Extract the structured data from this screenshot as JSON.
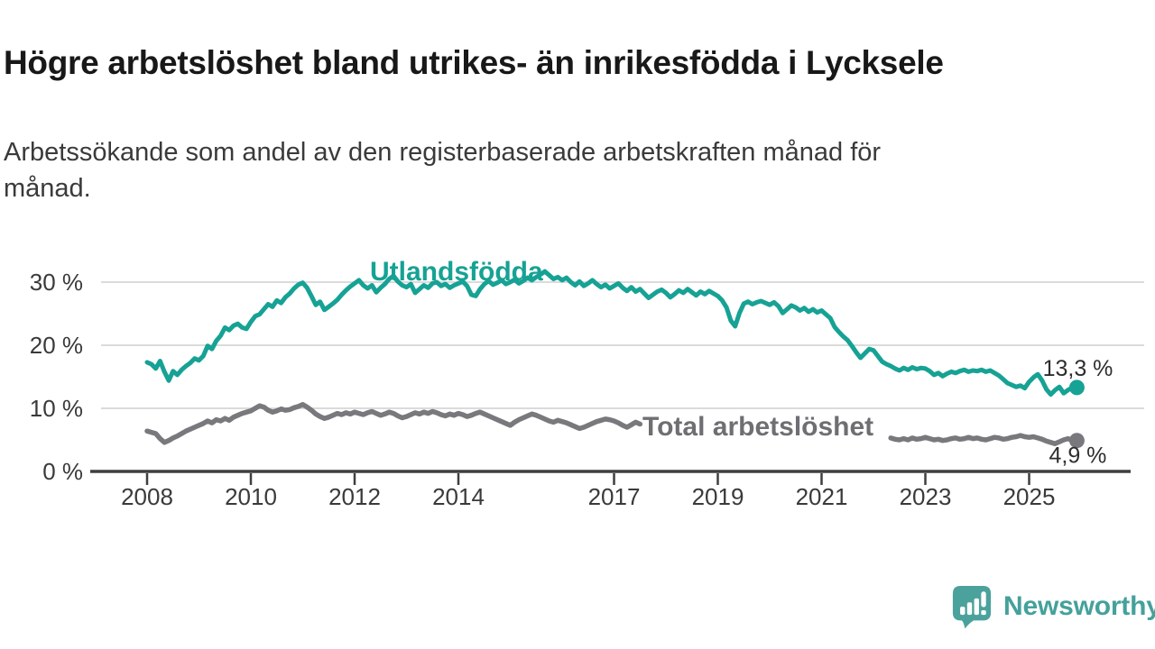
{
  "header": {
    "title": "Högre arbetslöshet bland utrikes- än inrikesfödda i Lycksele",
    "subtitle": "Arbetssökande som andel av den registerbaserade arbetskraften månad för månad."
  },
  "branding": {
    "logo_text": "Newsworthy",
    "logo_icon": "newsworthy-speech-bubble-chart-icon",
    "logo_color": "#4ba29c"
  },
  "colors": {
    "series_foreign_born": "#16a294",
    "series_total": "#78787d",
    "series_total_label": "#6e6e73",
    "axis": "#3f3f3f",
    "gridline": "#dbdbdb",
    "tick_label": "#3a3a3a",
    "value_label": "#2d2d2d"
  },
  "chart_data": {
    "type": "line",
    "title": "",
    "xlabel": "",
    "ylabel": "",
    "grid": "horizontal",
    "x_axis": {
      "unit": "year",
      "tick_years": [
        2008,
        2010,
        2012,
        2014,
        2017,
        2019,
        2021,
        2023,
        2025
      ],
      "tick_labels": [
        "2008",
        "2010",
        "2012",
        "2014",
        "2017",
        "2019",
        "2021",
        "2023",
        "2025"
      ],
      "range_years": [
        2007.9,
        2026.0
      ]
    },
    "y_axis": {
      "tick_values": [
        0,
        10,
        20,
        30
      ],
      "tick_labels": [
        "0 %",
        "10 %",
        "20 %",
        "30 %"
      ],
      "ylim": [
        0,
        33.5
      ],
      "unit": "%"
    },
    "series": [
      {
        "id": "total",
        "name": "Total arbetslöshet",
        "inline_label": "Total arbetslöshet",
        "end_label": "4,9 %",
        "end_value": 4.9,
        "color": "#78787d",
        "label_color": "#6e6e73",
        "line_width": 5.5,
        "frequency": "monthly",
        "segments": [
          {
            "start_year": 2008.0,
            "values": [
              6.4,
              6.2,
              6.0,
              5.2,
              4.6,
              4.9,
              5.3,
              5.6,
              6.0,
              6.4,
              6.7,
              7.0,
              7.3,
              7.6,
              8.0,
              7.7,
              8.2,
              8.0,
              8.4,
              8.1,
              8.6,
              8.9,
              9.2,
              9.4,
              9.6,
              10.0,
              10.4,
              10.2,
              9.7,
              9.4,
              9.6,
              9.9,
              9.7,
              9.8,
              10.1,
              10.3,
              10.6,
              10.2,
              9.7,
              9.1,
              8.7,
              8.4,
              8.6,
              8.9,
              9.2,
              9.0,
              9.3,
              9.1,
              9.4,
              9.2,
              9.0,
              9.3,
              9.5,
              9.2,
              8.9,
              9.1,
              9.4,
              9.2,
              8.8,
              8.5,
              8.7,
              9.0,
              9.3,
              9.1,
              9.4,
              9.2,
              9.5,
              9.3,
              9.0,
              8.8,
              9.1,
              8.9,
              9.2,
              9.0,
              8.7,
              8.9,
              9.2,
              9.4,
              9.1,
              8.8,
              8.5,
              8.2,
              7.9,
              7.6,
              7.3,
              7.8,
              8.2,
              8.5,
              8.8,
              9.1,
              8.9,
              8.6,
              8.3,
              8.0,
              7.8,
              8.1,
              7.9,
              7.7,
              7.4,
              7.1,
              6.8,
              7.0,
              7.3,
              7.6,
              7.9,
              8.1,
              8.3,
              8.2,
              8.0,
              7.7,
              7.3,
              7.0,
              7.4,
              7.8,
              7.5
            ]
          },
          {
            "start_year": 2022.3333,
            "values": [
              5.3,
              5.1,
              5.0,
              5.2,
              5.0,
              5.3,
              5.1,
              5.2,
              5.4,
              5.2,
              5.0,
              5.1,
              4.9,
              5.0,
              5.2,
              5.3,
              5.1,
              5.2,
              5.4,
              5.2,
              5.3,
              5.1,
              5.0,
              5.2,
              5.4,
              5.3,
              5.1,
              5.2,
              5.4,
              5.5,
              5.7,
              5.5,
              5.4,
              5.5,
              5.3,
              5.1,
              4.8,
              4.6,
              4.4,
              4.7,
              5.0,
              5.2,
              4.9
            ]
          }
        ]
      },
      {
        "id": "utlandsfodda",
        "name": "Utlandsfödda",
        "inline_label": "Utlandsfödda",
        "end_label": "13,3 %",
        "end_value": 13.3,
        "color": "#16a294",
        "label_color": "#16a294",
        "line_width": 5,
        "frequency": "monthly",
        "segments": [
          {
            "start_year": 2008.0,
            "values": [
              17.3,
              17.0,
              16.3,
              17.5,
              15.8,
              14.4,
              15.9,
              15.3,
              16.1,
              16.7,
              17.2,
              17.9,
              17.6,
              18.3,
              19.9,
              19.4,
              20.7,
              21.5,
              22.8,
              22.4,
              23.1,
              23.4,
              22.8,
              22.6,
              23.7,
              24.6,
              24.9,
              25.7,
              26.5,
              26.1,
              27.1,
              26.7,
              27.6,
              28.2,
              29.0,
              29.6,
              29.9,
              29.1,
              27.8,
              26.4,
              26.9,
              25.6,
              26.1,
              26.6,
              27.2,
              28.0,
              28.7,
              29.3,
              29.8,
              30.3,
              29.5,
              29.0,
              29.5,
              28.4,
              29.1,
              29.7,
              30.5,
              31.0,
              30.1,
              29.5,
              29.2,
              29.7,
              28.3,
              28.9,
              29.5,
              29.1,
              29.8,
              30.0,
              29.4,
              29.7,
              29.1,
              29.5,
              29.8,
              30.1,
              29.4,
              28.0,
              27.8,
              28.9,
              29.7,
              30.2,
              29.6,
              29.9,
              30.3,
              29.7,
              30.0,
              30.4,
              29.8,
              30.2,
              30.7,
              30.3,
              30.8,
              31.2,
              31.7,
              31.1,
              30.5,
              30.8,
              30.3,
              30.7,
              30.0,
              29.5,
              30.1,
              29.4,
              29.8,
              30.3,
              29.7,
              29.2,
              29.6,
              29.0,
              29.4,
              29.8,
              29.1,
              28.6,
              29.2,
              28.5,
              28.9,
              28.2,
              27.5,
              28.0,
              28.5,
              28.8,
              28.3,
              27.6,
              28.1,
              28.7,
              28.3,
              28.9,
              28.4,
              27.9,
              28.5,
              28.1,
              28.6,
              28.2,
              27.8,
              27.1,
              26.0,
              23.9,
              23.0,
              25.1,
              26.6,
              26.9,
              26.5,
              26.8,
              27.0,
              26.7,
              26.4,
              26.8,
              26.2,
              25.1,
              25.7,
              26.3,
              26.0,
              25.5,
              25.9,
              25.3,
              25.7,
              25.2,
              25.5,
              24.9,
              24.3,
              22.9,
              22.1,
              21.4,
              20.8,
              19.9,
              18.9,
              18.0,
              18.7,
              19.4,
              19.2,
              18.3,
              17.4,
              17.0,
              16.7,
              16.3,
              16.0,
              16.4,
              16.1,
              16.5,
              16.2,
              16.4,
              16.3,
              15.9,
              15.3,
              15.6,
              15.1,
              15.5,
              15.8,
              15.6,
              15.9,
              16.1,
              15.8,
              16.0,
              15.9,
              16.1,
              15.8,
              16.0,
              15.6,
              15.2,
              14.6,
              14.0,
              13.7,
              13.4,
              13.6,
              13.2,
              14.2,
              14.9,
              15.4,
              14.4,
              13.0,
              12.2,
              12.9,
              13.4,
              12.4,
              12.9,
              13.3
            ]
          }
        ]
      }
    ]
  }
}
